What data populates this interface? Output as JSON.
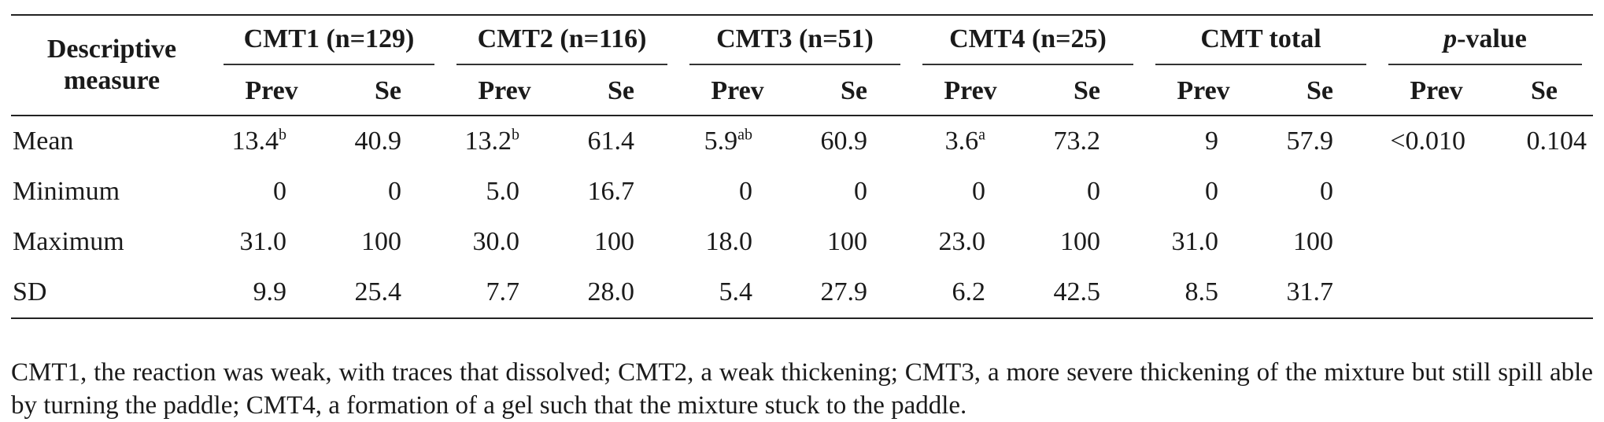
{
  "table": {
    "header": {
      "descriptive_measure": "Descriptive measure",
      "groups": [
        "CMT1 (n=129)",
        "CMT2 (n=116)",
        "CMT3 (n=51)",
        "CMT4 (n=25)",
        "CMT total"
      ],
      "pvalue_italic": "p",
      "pvalue_rest": "-value",
      "sub": [
        "Prev",
        "Se",
        "Prev",
        "Se",
        "Prev",
        "Se",
        "Prev",
        "Se",
        "Prev",
        "Se",
        "Prev",
        "Se"
      ]
    },
    "rows": [
      {
        "label": "Mean",
        "cells": [
          {
            "v": "13.4",
            "sup": "b"
          },
          {
            "v": "40.9"
          },
          {
            "v": "13.2",
            "sup": "b"
          },
          {
            "v": "61.4"
          },
          {
            "v": "5.9",
            "sup": "ab"
          },
          {
            "v": "60.9"
          },
          {
            "v": "3.6",
            "sup": "a"
          },
          {
            "v": "73.2"
          },
          {
            "v": "9"
          },
          {
            "v": "57.9"
          },
          {
            "v": "<0.010"
          },
          {
            "v": "0.104"
          }
        ]
      },
      {
        "label": "Minimum",
        "cells": [
          {
            "v": "0"
          },
          {
            "v": "0"
          },
          {
            "v": "5.0"
          },
          {
            "v": "16.7"
          },
          {
            "v": "0"
          },
          {
            "v": "0"
          },
          {
            "v": "0"
          },
          {
            "v": "0"
          },
          {
            "v": "0"
          },
          {
            "v": "0"
          },
          {
            "v": ""
          },
          {
            "v": ""
          }
        ]
      },
      {
        "label": "Maximum",
        "cells": [
          {
            "v": "31.0"
          },
          {
            "v": "100"
          },
          {
            "v": "30.0"
          },
          {
            "v": "100"
          },
          {
            "v": "18.0"
          },
          {
            "v": "100"
          },
          {
            "v": "23.0"
          },
          {
            "v": "100"
          },
          {
            "v": "31.0"
          },
          {
            "v": "100"
          },
          {
            "v": ""
          },
          {
            "v": ""
          }
        ]
      },
      {
        "label": "SD",
        "cells": [
          {
            "v": "9.9"
          },
          {
            "v": "25.4"
          },
          {
            "v": "7.7"
          },
          {
            "v": "28.0"
          },
          {
            "v": "5.4"
          },
          {
            "v": "27.9"
          },
          {
            "v": "6.2"
          },
          {
            "v": "42.5"
          },
          {
            "v": "8.5"
          },
          {
            "v": "31.7"
          },
          {
            "v": ""
          },
          {
            "v": ""
          }
        ]
      }
    ]
  },
  "footnote": "CMT1, the reaction was weak, with traces that dissolved; CMT2, a weak thickening; CMT3, a more severe thickening of the mixture but still spill able by turning the paddle; CMT4, a formation of a gel such that the mixture stuck to the paddle."
}
